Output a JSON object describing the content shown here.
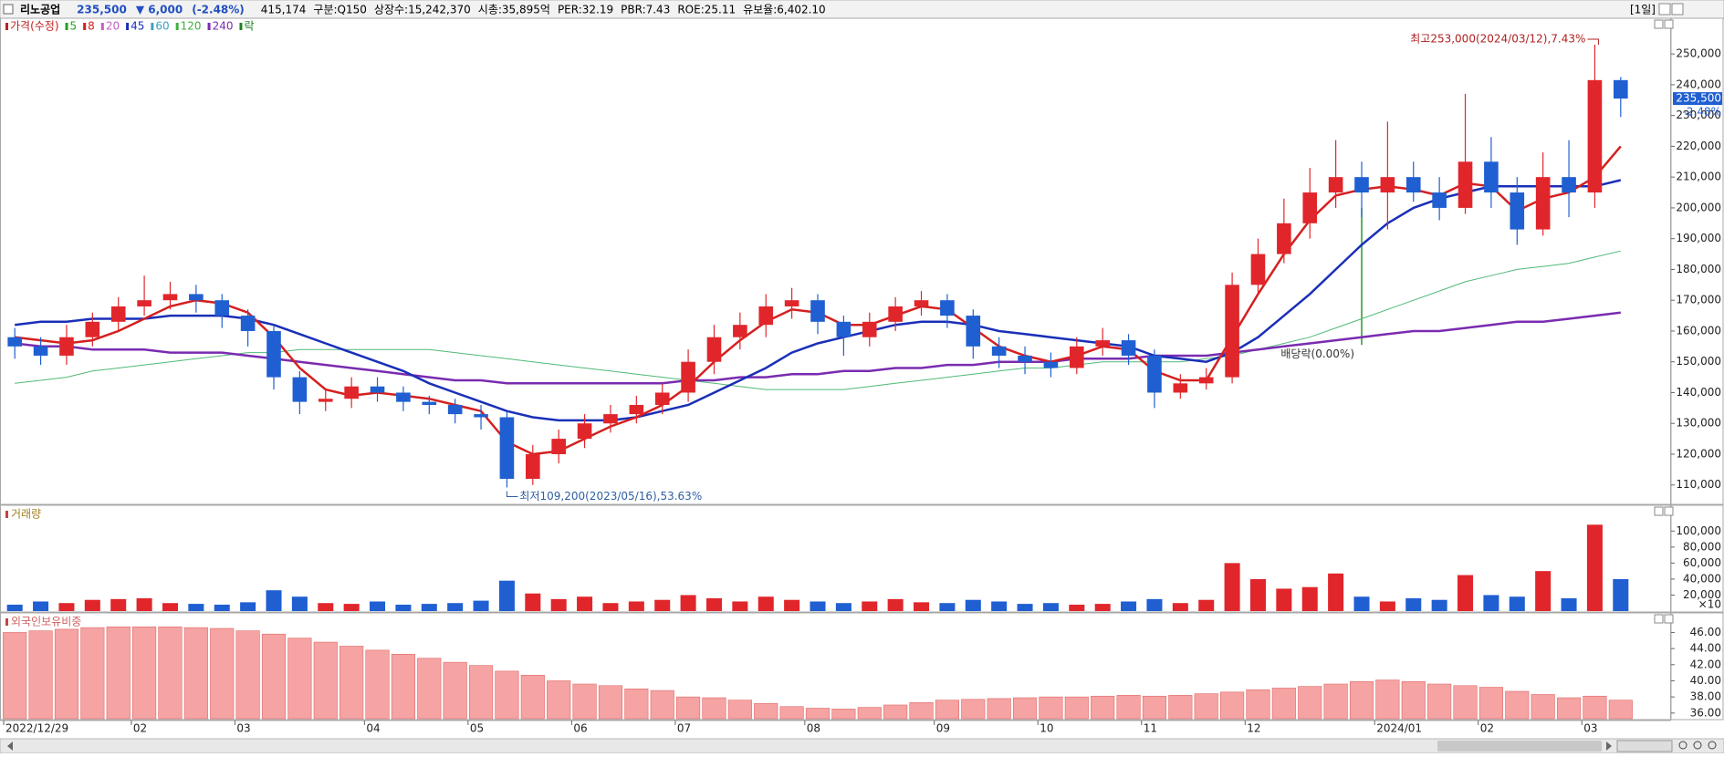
{
  "header": {
    "name": "리노공업",
    "price": "235,500",
    "change": "▼ 6,000",
    "change_pct": "(-2.48%)",
    "volume": "415,174",
    "fields": [
      "구분:Q150",
      "상장수:15,242,370",
      "시총:35,895억",
      "PER:32.19",
      "PBR:7.43",
      "ROE:25.11",
      "유보율:6,402.10"
    ],
    "period": "[1일]"
  },
  "chart_data": [
    {
      "type": "candlestick",
      "legend_items": [
        {
          "name": "가격(수정)",
          "color": "#c02020"
        },
        {
          "name": "5",
          "color": "#20a020"
        },
        {
          "name": "8",
          "color": "#d42020"
        },
        {
          "name": "20",
          "color": "#c060c0"
        },
        {
          "name": "45",
          "color": "#1a2fb8"
        },
        {
          "name": "60",
          "color": "#40a0c0"
        },
        {
          "name": "120",
          "color": "#40b040"
        },
        {
          "name": "240",
          "color": "#7a2bb0"
        },
        {
          "name": "락",
          "color": "#208020"
        }
      ],
      "up_color": "#e0262b",
      "down_color": "#1f5fd1",
      "categories": [
        "2022/12/29",
        null,
        null,
        null,
        null,
        "02",
        null,
        null,
        null,
        "03",
        null,
        null,
        null,
        null,
        "04",
        null,
        null,
        null,
        "05",
        null,
        null,
        null,
        "06",
        null,
        null,
        null,
        "07",
        null,
        null,
        null,
        null,
        "08",
        null,
        null,
        null,
        null,
        "09",
        null,
        null,
        null,
        "10",
        null,
        null,
        null,
        "11",
        null,
        null,
        null,
        "12",
        null,
        null,
        null,
        null,
        "2024/01",
        null,
        null,
        null,
        "02",
        null,
        null,
        null,
        "03",
        null
      ],
      "open": [
        158000,
        155000,
        152000,
        158000,
        163000,
        168000,
        170000,
        172000,
        170000,
        165000,
        160000,
        145000,
        137000,
        138000,
        142000,
        140000,
        137000,
        136000,
        133000,
        132000,
        112000,
        120000,
        125000,
        130000,
        133000,
        136000,
        140000,
        150000,
        158000,
        162000,
        168000,
        170000,
        163000,
        158000,
        163000,
        168000,
        170000,
        165000,
        155000,
        152000,
        150000,
        148000,
        155000,
        157000,
        152000,
        140000,
        143000,
        145000,
        175000,
        185000,
        195000,
        205000,
        210000,
        205000,
        210000,
        205000,
        200000,
        215000,
        205000,
        193000,
        210000,
        205000,
        241500
      ],
      "high": [
        161000,
        158000,
        162000,
        166000,
        171000,
        178000,
        176000,
        175000,
        172000,
        167000,
        162000,
        147000,
        141000,
        145000,
        145000,
        142000,
        139000,
        138000,
        136000,
        134000,
        123000,
        128000,
        133000,
        136000,
        139000,
        143000,
        154000,
        162000,
        166000,
        172000,
        174000,
        172000,
        165000,
        166000,
        171000,
        173000,
        172000,
        167000,
        158000,
        155000,
        153000,
        158000,
        161000,
        159000,
        154000,
        146000,
        148000,
        179000,
        190000,
        203000,
        213000,
        222000,
        215000,
        228000,
        215000,
        210000,
        237000,
        223000,
        210000,
        218000,
        222000,
        253000,
        242500
      ],
      "low": [
        151000,
        149000,
        149000,
        155000,
        160000,
        165000,
        167000,
        166000,
        161000,
        155000,
        141000,
        133000,
        134000,
        135000,
        137000,
        134000,
        133000,
        130000,
        128000,
        109200,
        110000,
        117000,
        122000,
        127000,
        130000,
        133000,
        137000,
        146000,
        154000,
        158000,
        164000,
        159000,
        152000,
        155000,
        160000,
        165000,
        161000,
        151000,
        148000,
        146000,
        145000,
        146000,
        152000,
        149000,
        135000,
        138000,
        141000,
        143000,
        172000,
        182000,
        190000,
        200000,
        197000,
        193000,
        202000,
        196000,
        198000,
        200000,
        188000,
        191000,
        197000,
        200000,
        229500
      ],
      "close": [
        155000,
        152000,
        158000,
        163000,
        168000,
        170000,
        172000,
        170000,
        165000,
        160000,
        145000,
        137000,
        138000,
        142000,
        140000,
        137000,
        136000,
        133000,
        132000,
        112000,
        120000,
        125000,
        130000,
        133000,
        136000,
        140000,
        150000,
        158000,
        162000,
        168000,
        170000,
        163000,
        158000,
        163000,
        168000,
        170000,
        165000,
        155000,
        152000,
        150000,
        148000,
        155000,
        157000,
        152000,
        140000,
        143000,
        145000,
        175000,
        185000,
        195000,
        205000,
        210000,
        205000,
        210000,
        205000,
        200000,
        215000,
        205000,
        193000,
        210000,
        205000,
        241500,
        235500
      ],
      "series": [
        {
          "name": "120",
          "color": "#50b878",
          "width": 1,
          "values": [
            143000,
            144000,
            145000,
            147000,
            148000,
            149000,
            150000,
            151000,
            152000,
            153000,
            153000,
            154000,
            154000,
            154000,
            154000,
            154000,
            154000,
            153000,
            152000,
            151000,
            150000,
            149000,
            148000,
            147000,
            146000,
            145000,
            144000,
            143000,
            142000,
            141000,
            141000,
            141000,
            141000,
            142000,
            143000,
            144000,
            145000,
            146000,
            147000,
            148000,
            148000,
            149000,
            150000,
            150000,
            150000,
            150000,
            151000,
            152000,
            154000,
            156000,
            158000,
            161000,
            164000,
            167000,
            170000,
            173000,
            176000,
            178000,
            180000,
            181000,
            182000,
            184000,
            186000
          ]
        },
        {
          "name": "240",
          "color": "#7a2bb0",
          "width": 2.5,
          "values": [
            156000,
            155000,
            155000,
            154000,
            154000,
            154000,
            153000,
            153000,
            153000,
            152000,
            151000,
            150000,
            149000,
            148000,
            147000,
            146000,
            145000,
            144000,
            144000,
            143000,
            143000,
            143000,
            143000,
            143000,
            143000,
            143000,
            144000,
            144000,
            145000,
            145000,
            146000,
            146000,
            147000,
            147000,
            148000,
            148000,
            149000,
            149000,
            150000,
            150000,
            150000,
            151000,
            151000,
            151000,
            152000,
            152000,
            152000,
            153000,
            154000,
            155000,
            156000,
            157000,
            158000,
            159000,
            160000,
            160000,
            161000,
            162000,
            163000,
            163000,
            164000,
            165000,
            166000
          ]
        },
        {
          "name": "45",
          "color": "#1a2fb8",
          "width": 2.5,
          "values": [
            162000,
            163000,
            163000,
            164000,
            164000,
            164000,
            165000,
            165000,
            165000,
            164000,
            162000,
            159000,
            156000,
            153000,
            150000,
            147000,
            143000,
            140000,
            137000,
            134000,
            132000,
            131000,
            131000,
            131000,
            132000,
            134000,
            136000,
            140000,
            144000,
            148000,
            153000,
            156000,
            158000,
            160000,
            162000,
            163000,
            163000,
            162000,
            160000,
            159000,
            158000,
            157000,
            156000,
            155000,
            152000,
            151000,
            150000,
            153000,
            158000,
            165000,
            172000,
            180000,
            188000,
            195000,
            200000,
            203000,
            205000,
            207000,
            207000,
            207000,
            207000,
            207000,
            209000
          ]
        },
        {
          "name": "8",
          "color": "#d42020",
          "width": 2.5,
          "values": [
            158000,
            157000,
            156000,
            157000,
            160000,
            164000,
            168000,
            170000,
            169000,
            166000,
            158000,
            148000,
            141000,
            139000,
            140000,
            139000,
            138000,
            136000,
            134000,
            124000,
            120000,
            121000,
            125000,
            129000,
            132000,
            136000,
            142000,
            150000,
            157000,
            163000,
            167000,
            166000,
            162000,
            162000,
            165000,
            168000,
            167000,
            161000,
            155000,
            152000,
            150000,
            152000,
            155000,
            154000,
            147000,
            144000,
            144000,
            158000,
            172000,
            185000,
            196000,
            204000,
            206000,
            207000,
            206000,
            204000,
            208000,
            207000,
            199000,
            203000,
            205000,
            210000,
            220000
          ]
        }
      ],
      "ylim": [
        104000,
        261000
      ],
      "yticks": [
        {
          "value": 110000,
          "label": "110,000"
        },
        {
          "value": 120000,
          "label": "120,000"
        },
        {
          "value": 130000,
          "label": "130,000"
        },
        {
          "value": 140000,
          "label": "140,000"
        },
        {
          "value": 150000,
          "label": "150,000"
        },
        {
          "value": 160000,
          "label": "160,000"
        },
        {
          "value": 170000,
          "label": "170,000"
        },
        {
          "value": 180000,
          "label": "180,000"
        },
        {
          "value": 190000,
          "label": "190,000"
        },
        {
          "value": 200000,
          "label": "200,000"
        },
        {
          "value": 210000,
          "label": "210,000"
        },
        {
          "value": 220000,
          "label": "220,000"
        },
        {
          "value": 230000,
          "label": "230,000"
        },
        {
          "value": 240000,
          "label": "240,000"
        },
        {
          "value": 250000,
          "label": "250,000"
        }
      ],
      "high_label": "최고253,000(2024/03/12),7.43%",
      "low_label": "최저109,200(2023/05/16),53.63%",
      "dividend_label": "배당락(0.00%)",
      "price_label": "235,500",
      "change_label": "-2.48%"
    },
    {
      "type": "bar",
      "title": "거래량",
      "unit_label": "×10",
      "values": [
        8000,
        12000,
        10000,
        14000,
        15000,
        16000,
        10000,
        9000,
        8000,
        11000,
        26000,
        18000,
        10000,
        9000,
        12000,
        8000,
        9000,
        10000,
        13000,
        38000,
        22000,
        15000,
        18000,
        10000,
        12000,
        14000,
        20000,
        16000,
        12000,
        18000,
        14000,
        12000,
        10000,
        12000,
        15000,
        11000,
        10000,
        14000,
        12000,
        9000,
        10000,
        8000,
        9000,
        12000,
        15000,
        10000,
        14000,
        60000,
        40000,
        28000,
        30000,
        47000,
        18000,
        12000,
        16000,
        14000,
        45000,
        20000,
        18000,
        50000,
        16000,
        108000,
        40000
      ],
      "ylim": [
        0,
        130000
      ],
      "yticks": [
        {
          "value": 20000,
          "label": "20,000"
        },
        {
          "value": 40000,
          "label": "40,000"
        },
        {
          "value": 60000,
          "label": "60,000"
        },
        {
          "value": 80000,
          "label": "80,000"
        },
        {
          "value": 100000,
          "label": "100,000"
        }
      ]
    },
    {
      "type": "bar",
      "title": "외국인보유비중",
      "color": "#f5a3a3",
      "stroke": "#e06a6a",
      "values": [
        46.0,
        46.2,
        46.4,
        46.6,
        46.7,
        46.7,
        46.7,
        46.6,
        46.5,
        46.2,
        45.8,
        45.3,
        44.8,
        44.3,
        43.8,
        43.3,
        42.8,
        42.3,
        41.9,
        41.2,
        40.7,
        40.0,
        39.6,
        39.4,
        39.0,
        38.8,
        38.0,
        37.9,
        37.6,
        37.2,
        36.8,
        36.6,
        36.5,
        36.7,
        37.0,
        37.3,
        37.6,
        37.7,
        37.8,
        37.9,
        38.0,
        38.0,
        38.1,
        38.2,
        38.1,
        38.2,
        38.4,
        38.6,
        38.9,
        39.1,
        39.3,
        39.6,
        39.9,
        40.1,
        39.9,
        39.6,
        39.4,
        39.2,
        38.7,
        38.3,
        37.9,
        38.1,
        37.6
      ],
      "ylim": [
        35.3,
        48.2
      ],
      "yticks": [
        {
          "value": 36,
          "label": "36.00"
        },
        {
          "value": 38,
          "label": "38.00"
        },
        {
          "value": 40,
          "label": "40.00"
        },
        {
          "value": 42,
          "label": "42.00"
        },
        {
          "value": 44,
          "label": "44.00"
        },
        {
          "value": 46,
          "label": "46.00"
        }
      ]
    }
  ]
}
